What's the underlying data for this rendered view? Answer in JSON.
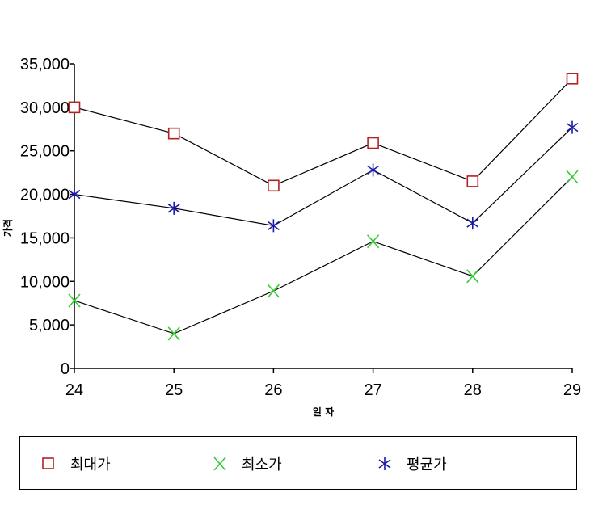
{
  "chart_data": {
    "type": "line",
    "categories": [
      "24",
      "25",
      "26",
      "27",
      "28",
      "29"
    ],
    "xlabel": "일 자",
    "ylabel": "가격",
    "ylim": [
      0,
      35000
    ],
    "yticks": [
      0,
      5000,
      10000,
      15000,
      20000,
      25000,
      30000,
      35000
    ],
    "ytick_labels": [
      "0",
      "5,000",
      "10,000",
      "15,000",
      "20,000",
      "25,000",
      "30,000",
      "35,000"
    ],
    "grid": false,
    "legend_position": "bottom",
    "series": [
      {
        "name": "최대가",
        "marker": "square",
        "color": "#b22222",
        "values": [
          30000,
          27000,
          21000,
          25900,
          21500,
          33300
        ]
      },
      {
        "name": "최소가",
        "marker": "x",
        "color": "#33cc33",
        "values": [
          7800,
          4000,
          8900,
          14600,
          10600,
          22000
        ]
      },
      {
        "name": "평균가",
        "marker": "asterisk",
        "color": "#1a1aaa",
        "values": [
          20000,
          18400,
          16400,
          22800,
          16700,
          27700
        ]
      }
    ],
    "line_color": "#000000"
  }
}
